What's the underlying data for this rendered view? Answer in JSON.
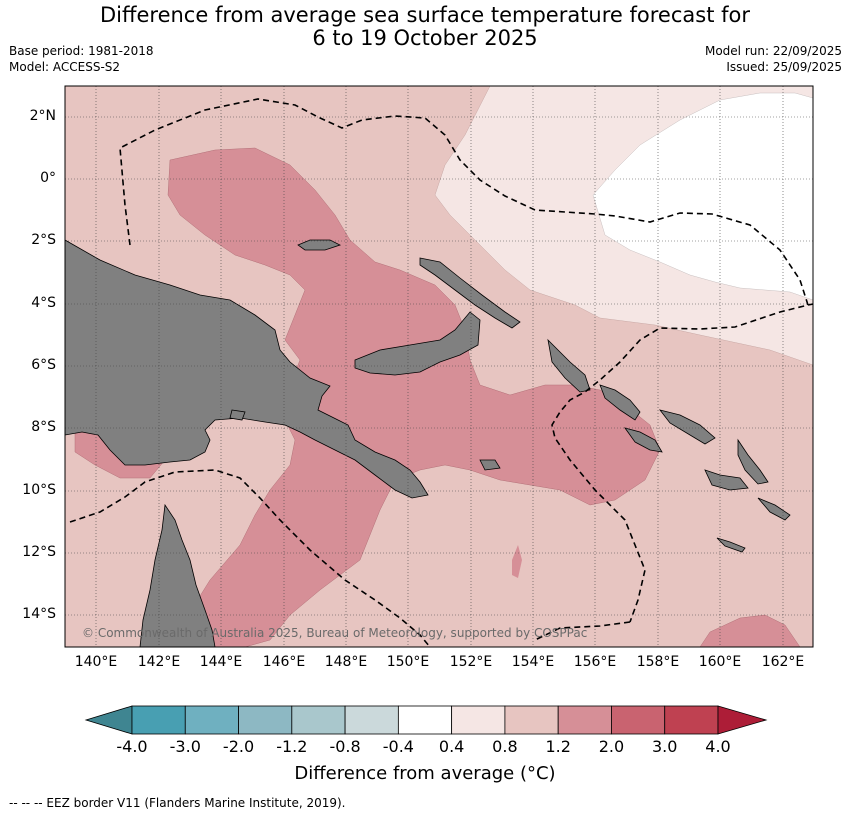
{
  "title_line1": "Difference from average sea surface temperature forecast for",
  "title_line2": "6 to 19 October 2025",
  "base_period": "Base period: 1981-2018",
  "model": "Model: ACCESS-S2",
  "model_run": "Model run: 22/09/2025",
  "issued": "Issued: 25/09/2025",
  "copyright": "© Commonwealth of Australia 2025, Bureau of Meteorology, supported by COSPPac",
  "lat_labels": [
    "2°N",
    "0°",
    "2°S",
    "4°S",
    "6°S",
    "8°S",
    "10°S",
    "12°S",
    "14°S"
  ],
  "lon_labels": [
    "140°E",
    "142°E",
    "144°E",
    "146°E",
    "148°E",
    "150°E",
    "152°E",
    "154°E",
    "156°E",
    "158°E",
    "160°E",
    "162°E"
  ],
  "colorbar": {
    "ticks": [
      "-4.0",
      "-3.0",
      "-2.0",
      "-1.2",
      "-0.8",
      "-0.4",
      "0.4",
      "0.8",
      "1.2",
      "2.0",
      "3.0",
      "4.0"
    ],
    "colors": [
      "#3f8591",
      "#489fb2",
      "#6fb0c0",
      "#8db8c3",
      "#a9c7cc",
      "#cbd9db",
      "#ffffff",
      "#f5e6e4",
      "#e7c5c1",
      "#d68f97",
      "#c96370",
      "#bf4151",
      "#ad1d37"
    ],
    "label": "Difference from average (°C)"
  },
  "footnote": "--  --  -- EEZ border V11 (Flanders Marine Institute, 2019).",
  "map": {
    "land_color": "#808080",
    "bins": {
      "c04_08": "#f5e6e4",
      "c08_12": "#e7c5c1",
      "c12_20": "#d68f97",
      "c20_30": "#c96370"
    }
  }
}
